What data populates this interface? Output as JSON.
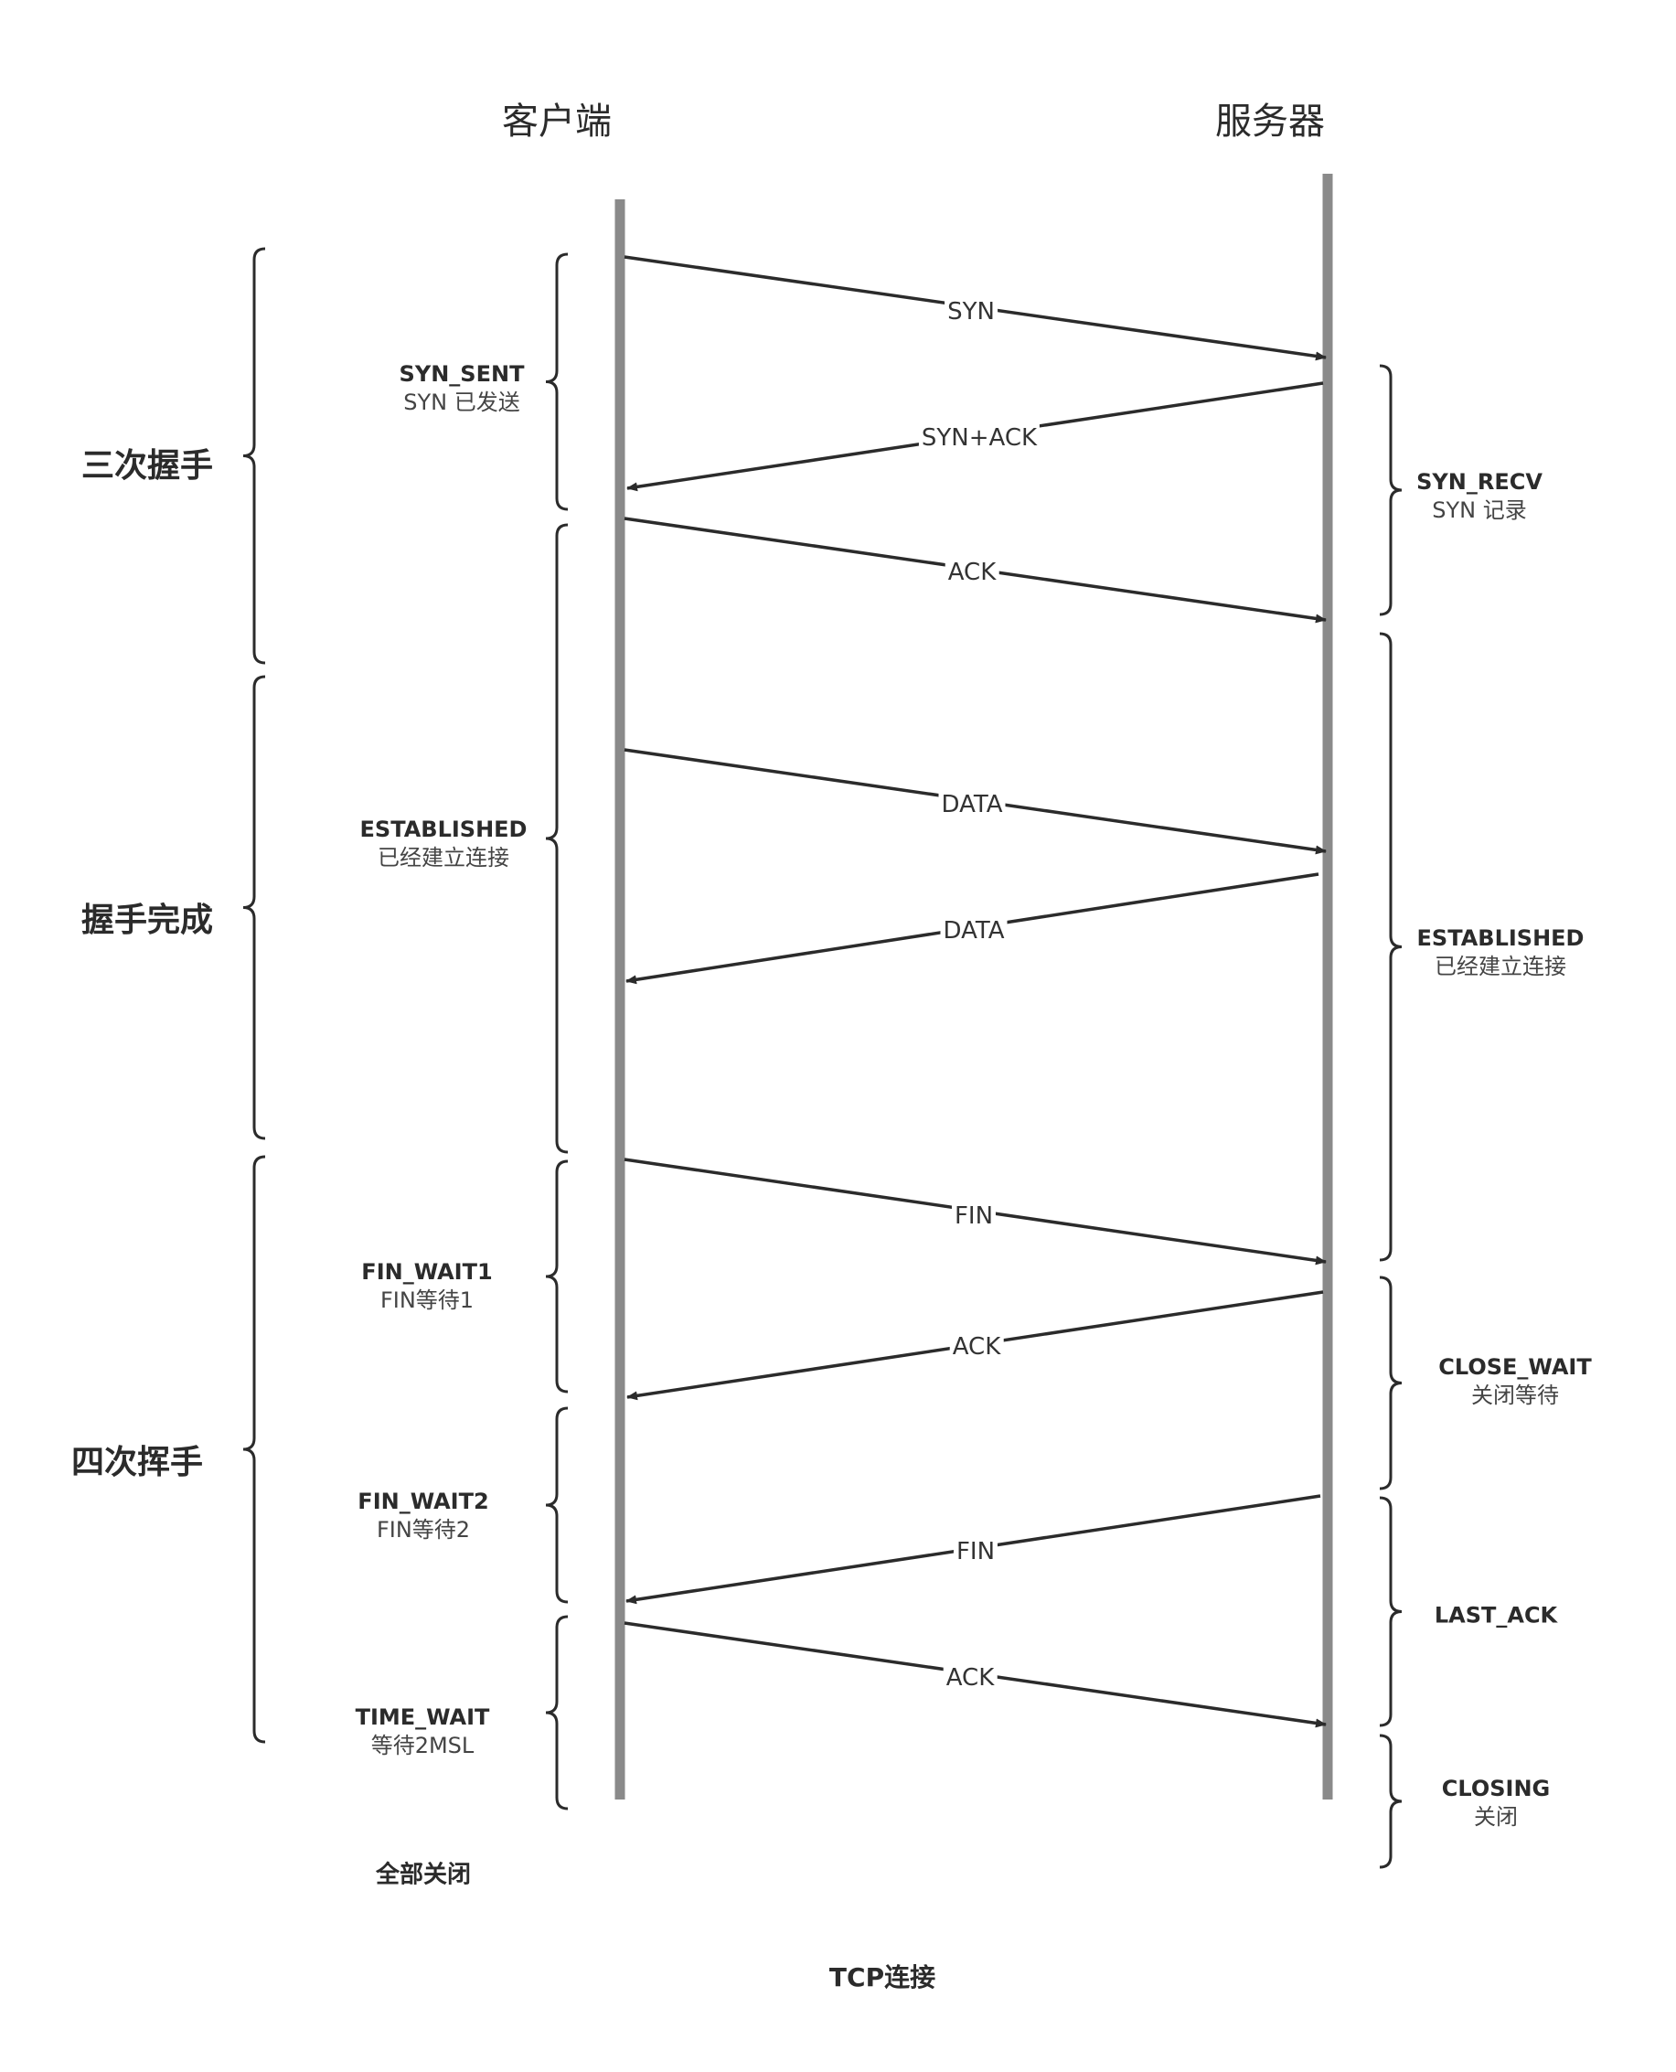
{
  "parties": {
    "client": "客户端",
    "server": "服务器"
  },
  "phases": [
    {
      "label": "三次握手"
    },
    {
      "label": "握手完成"
    },
    {
      "label": "四次挥手"
    }
  ],
  "client_states": [
    {
      "name": "SYN_SENT",
      "desc": "SYN 已发送"
    },
    {
      "name": "ESTABLISHED",
      "desc": "已经建立连接"
    },
    {
      "name": "FIN_WAIT1",
      "desc": "FIN等待1"
    },
    {
      "name": "FIN_WAIT2",
      "desc": "FIN等待2"
    },
    {
      "name": "TIME_WAIT",
      "desc": "等待2MSL"
    }
  ],
  "server_states": [
    {
      "name": "SYN_RECV",
      "desc": "SYN 记录"
    },
    {
      "name": "ESTABLISHED",
      "desc": "已经建立连接"
    },
    {
      "name": "CLOSE_WAIT",
      "desc": "关闭等待"
    },
    {
      "name": "LAST_ACK",
      "desc": ""
    },
    {
      "name": "CLOSING",
      "desc": "关闭"
    }
  ],
  "messages": [
    {
      "label": "SYN",
      "direction": "client-to-server"
    },
    {
      "label": "SYN+ACK",
      "direction": "server-to-client"
    },
    {
      "label": "ACK",
      "direction": "client-to-server"
    },
    {
      "label": "DATA",
      "direction": "client-to-server"
    },
    {
      "label": "DATA",
      "direction": "server-to-client"
    },
    {
      "label": "FIN",
      "direction": "client-to-server"
    },
    {
      "label": "ACK",
      "direction": "server-to-client"
    },
    {
      "label": "FIN",
      "direction": "server-to-client"
    },
    {
      "label": "ACK",
      "direction": "client-to-server"
    }
  ],
  "footer": {
    "all_closed": "全部关闭",
    "caption": "TCP连接"
  },
  "colors": {
    "lifeline": "#8a8a8a",
    "arrow": "#2b2b2b",
    "brace": "#2b2b2b",
    "background": "#ffffff"
  }
}
